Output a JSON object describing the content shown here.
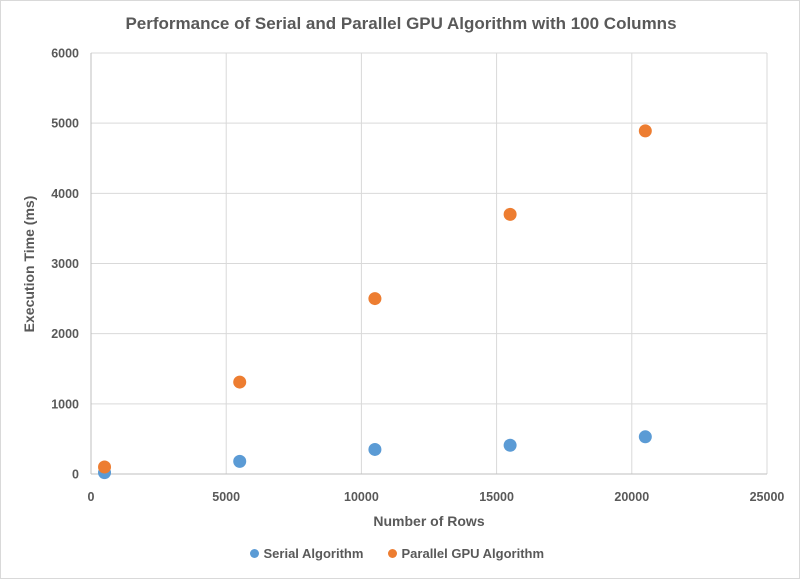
{
  "chart_data": {
    "type": "scatter",
    "title": "Performance of Serial and Parallel GPU Algorithm with 100 Columns",
    "xlabel": "Number of Rows",
    "ylabel": "Execution Time (ms)",
    "xlim": [
      0,
      25000
    ],
    "ylim": [
      0,
      6000
    ],
    "xticks": [
      0,
      5000,
      10000,
      15000,
      20000,
      25000
    ],
    "yticks": [
      0,
      1000,
      2000,
      3000,
      4000,
      5000,
      6000
    ],
    "grid": true,
    "legend_position": "bottom",
    "series": [
      {
        "name": "Serial Algorithm",
        "color": "#5b9bd5",
        "x": [
          500,
          5500,
          10500,
          15500,
          20500
        ],
        "y": [
          20,
          180,
          350,
          410,
          530
        ]
      },
      {
        "name": "Parallel GPU Algorithm",
        "color": "#ed7d31",
        "x": [
          500,
          5500,
          10500,
          15500,
          20500
        ],
        "y": [
          100,
          1310,
          2500,
          3700,
          4890
        ]
      }
    ]
  }
}
